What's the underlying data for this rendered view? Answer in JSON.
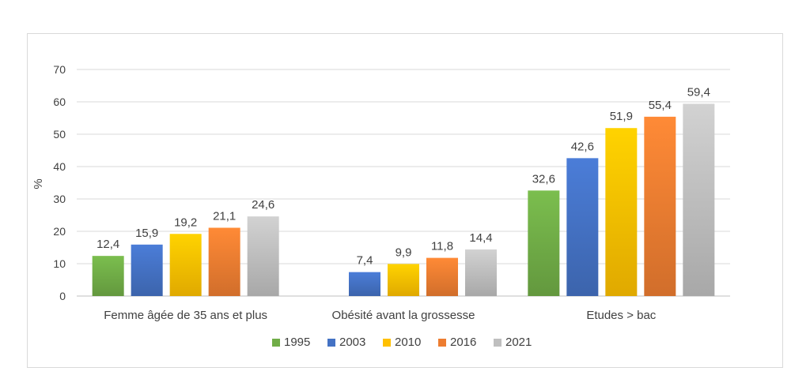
{
  "chart_data": {
    "type": "bar",
    "ylabel": "%",
    "xlabel": "",
    "ylim": [
      0,
      70
    ],
    "yticks": [
      0,
      10,
      20,
      30,
      40,
      50,
      60,
      70
    ],
    "grid": true,
    "legend_position": "bottom",
    "categories": [
      "Femme âgée de 35 ans et plus",
      "Obésité avant la grossesse",
      "Etudes > bac"
    ],
    "series": [
      {
        "name": "1995",
        "color": "#70ad47",
        "values": [
          12.4,
          null,
          32.6
        ],
        "labels": [
          "12,4",
          "",
          "32,6"
        ]
      },
      {
        "name": "2003",
        "color": "#4472c4",
        "values": [
          15.9,
          7.4,
          42.6
        ],
        "labels": [
          "15,9",
          "7,4",
          "42,6"
        ]
      },
      {
        "name": "2010",
        "color": "#ffc000",
        "values": [
          19.2,
          9.9,
          51.9
        ],
        "labels": [
          "19,2",
          "9,9",
          "51,9"
        ]
      },
      {
        "name": "2016",
        "color": "#ed7d31",
        "values": [
          21.1,
          11.8,
          55.4
        ],
        "labels": [
          "21,1",
          "11,8",
          "55,4"
        ]
      },
      {
        "name": "2021",
        "color": "#bfbfbf",
        "values": [
          24.6,
          14.4,
          59.4
        ],
        "labels": [
          "24,6",
          "14,4",
          "59,4"
        ]
      }
    ]
  }
}
